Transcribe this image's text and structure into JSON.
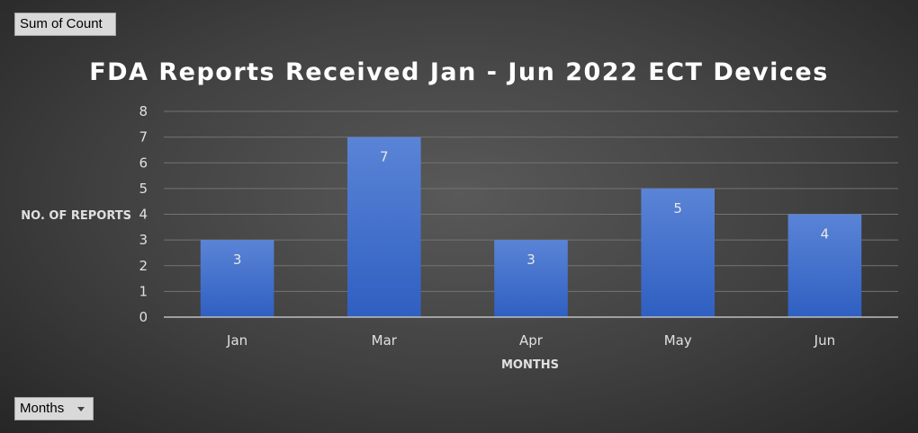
{
  "field_button": {
    "label": "Sum of Count"
  },
  "axis_field_button": {
    "label": "Months"
  },
  "colors": {
    "bar_top": "#5a84d6",
    "bar_bottom": "#2f5fc2",
    "grid": "#737373",
    "axis": "#bfbfbf",
    "text": "#e0e0e0",
    "title": "#ffffff"
  },
  "chart_data": {
    "type": "bar",
    "title": "FDA Reports Received Jan - Jun 2022 ECT Devices",
    "xlabel": "MONTHS",
    "ylabel": "NO. OF REPORTS",
    "categories": [
      "Jan",
      "Mar",
      "Apr",
      "May",
      "Jun"
    ],
    "values": [
      3,
      7,
      3,
      5,
      4
    ],
    "ylim": [
      0,
      8
    ],
    "yticks": [
      "0",
      "1",
      "2",
      "3",
      "4",
      "5",
      "6",
      "7",
      "8"
    ],
    "data_labels": [
      "3",
      "7",
      "3",
      "5",
      "4"
    ],
    "grid": true,
    "legend": "none"
  }
}
